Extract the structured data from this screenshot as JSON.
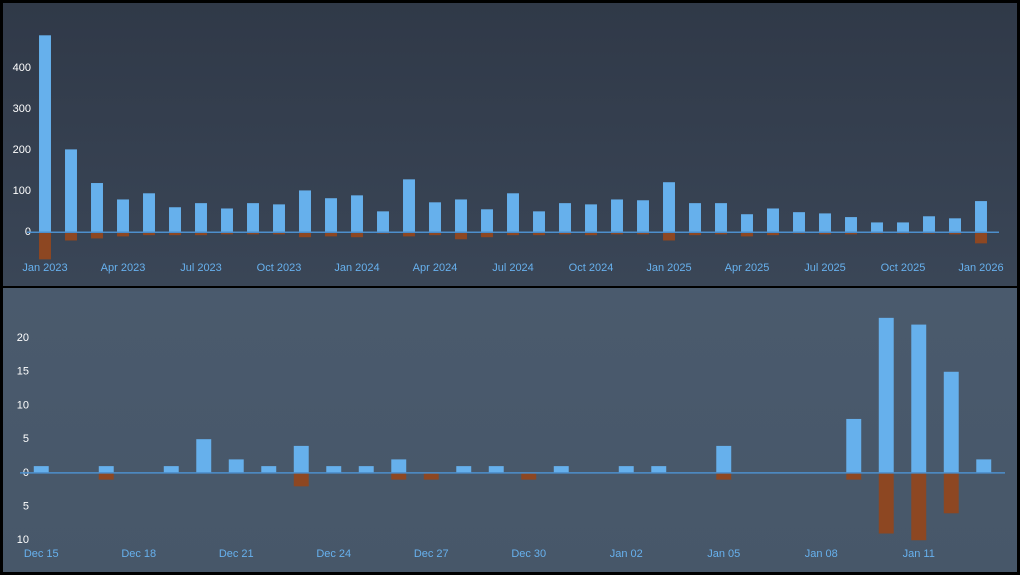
{
  "chart_data": [
    {
      "type": "bar",
      "categories": [
        "Jan 2023",
        null,
        null,
        "Apr 2023",
        null,
        null,
        "Jul 2023",
        null,
        null,
        "Oct 2023",
        null,
        null,
        "Jan 2024",
        null,
        null,
        "Apr 2024",
        null,
        null,
        "Jul 2024",
        null,
        null,
        "Oct 2024",
        null,
        null,
        "Jan 2025",
        null,
        null,
        "Apr 2025",
        null,
        null,
        "Jul 2025",
        null,
        null,
        "Oct 2025",
        null,
        null,
        "Jan 2026"
      ],
      "series": [
        {
          "color": "#66b0ec",
          "values": [
            480,
            202,
            120,
            80,
            95,
            61,
            71,
            58,
            71,
            68,
            102,
            83,
            90,
            51,
            129,
            73,
            80,
            56,
            95,
            51,
            71,
            68,
            80,
            78,
            122,
            71,
            71,
            44,
            58,
            49,
            46,
            37,
            24,
            24,
            39,
            34,
            76
          ]
        },
        {
          "color": "#8d4722",
          "values": [
            -66,
            -20,
            -15,
            -10,
            -7,
            -7,
            -7,
            -5,
            -5,
            -5,
            -12,
            -10,
            -12,
            -3,
            -10,
            -7,
            -17,
            -12,
            -7,
            -7,
            -5,
            -7,
            -5,
            -5,
            -20,
            -7,
            -5,
            -10,
            -7,
            -3,
            -5,
            -5,
            -3,
            -3,
            -3,
            -5,
            -27
          ]
        }
      ],
      "ylim": [
        -70,
        510
      ],
      "yticks": [
        0,
        100,
        200,
        300,
        400
      ],
      "grid": false
    },
    {
      "type": "bar",
      "categories": [
        "Dec 15",
        null,
        null,
        "Dec 18",
        null,
        null,
        "Dec 21",
        null,
        null,
        "Dec 24",
        null,
        null,
        "Dec 27",
        null,
        null,
        "Dec 30",
        null,
        null,
        "Jan 02",
        null,
        null,
        "Jan 05",
        null,
        null,
        "Jan 08",
        null,
        null,
        "Jan 11",
        null,
        null
      ],
      "series": [
        {
          "color": "#66b0ec",
          "values": [
            1,
            0,
            1,
            0,
            1,
            5,
            2,
            1,
            4,
            1,
            1,
            2,
            0,
            1,
            1,
            0,
            1,
            0,
            1,
            1,
            0,
            4,
            0,
            0,
            0,
            8,
            23,
            22,
            15,
            2
          ]
        },
        {
          "color": "#8d4722",
          "values": [
            0,
            0,
            -1,
            0,
            0,
            0,
            0,
            0,
            -2,
            0,
            0,
            -1,
            -1,
            0,
            0,
            -1,
            0,
            0,
            0,
            0,
            0,
            -1,
            0,
            0,
            0,
            -1,
            -9,
            -10,
            -6,
            0
          ]
        }
      ],
      "ylim": [
        -11,
        25.5
      ],
      "yticks": [
        {
          "value": -10,
          "label": "10"
        },
        {
          "value": -5,
          "label": "5"
        },
        0,
        5,
        10,
        15,
        20
      ],
      "grid": false
    }
  ]
}
